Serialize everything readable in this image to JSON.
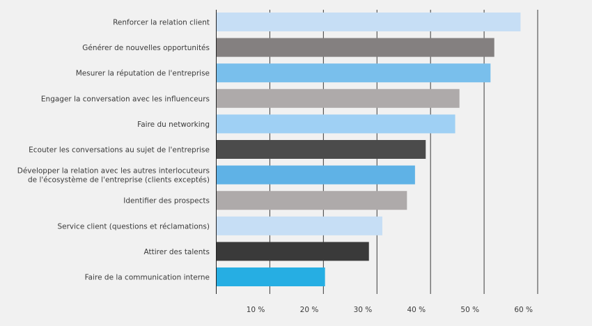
{
  "chart_data": {
    "type": "bar",
    "orientation": "horizontal",
    "title": "",
    "xlabel": "",
    "ylabel": "",
    "xlim": [
      0,
      60
    ],
    "grid": true,
    "ticks": [
      10,
      20,
      30,
      40,
      50,
      60
    ],
    "tick_labels": [
      "10 %",
      "20 %",
      "30 %",
      "40 %",
      "50 %",
      "60 %"
    ],
    "categories": [
      [
        "Renforcer la relation client"
      ],
      [
        "Générer de nouvelles opportunités"
      ],
      [
        "Mesurer la réputation de l'entreprise"
      ],
      [
        "Engager la conversation avec les influenceurs"
      ],
      [
        "Faire du networking"
      ],
      [
        "Ecouter les conversations au sujet de l'entreprise"
      ],
      [
        "Développer la relation avec les autres interlocuteurs",
        "de l'écosystème de l'entreprise (clients exceptés)"
      ],
      [
        "Identifier des prospects"
      ],
      [
        "Service client (questions et réclamations)"
      ],
      [
        "Attirer des talents"
      ],
      [
        "Faire de la communication interne"
      ]
    ],
    "values": [
      56.8,
      51.9,
      51.2,
      45.4,
      44.6,
      39.1,
      37.1,
      35.6,
      31.0,
      28.5,
      20.3
    ],
    "colors": [
      "#c6def5",
      "#848080",
      "#79bfec",
      "#aeaaaa",
      "#9fd0f4",
      "#4b4b4b",
      "#5fb2e6",
      "#aeaaaa",
      "#c6def5",
      "#3a3a3a",
      "#26aee3"
    ]
  }
}
